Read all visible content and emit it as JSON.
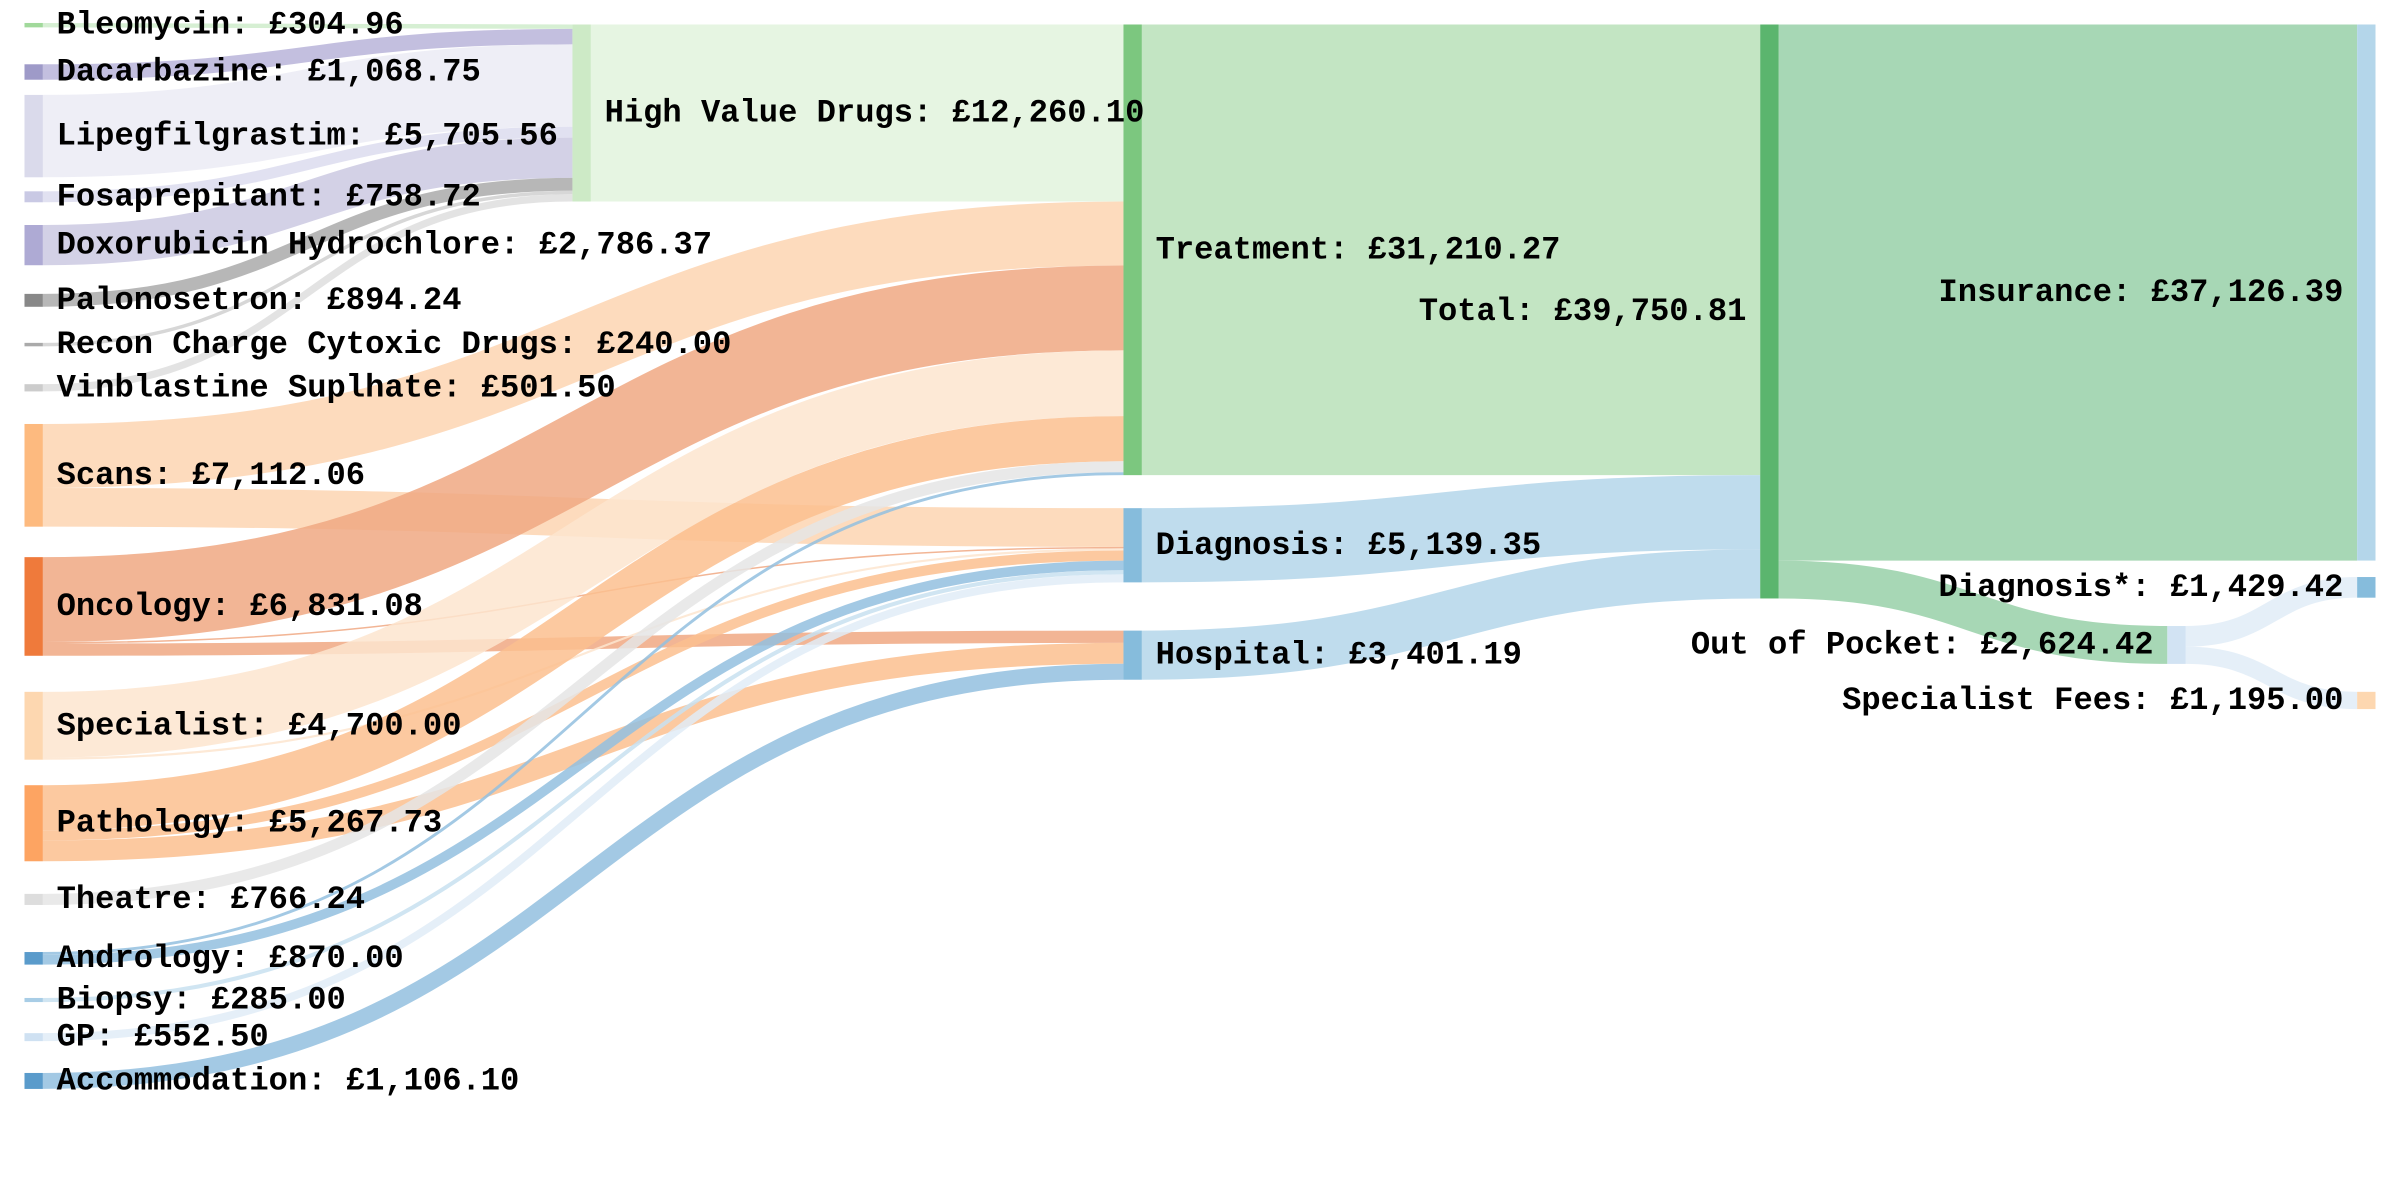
{
  "chart_data": {
    "type": "sankey",
    "currency": "£",
    "nodes": [
      {
        "id": "bleomycin",
        "label": "Bleomycin: £304.96",
        "value": 304.96,
        "color": "#a1d99b",
        "link_color": "#cfeccb"
      },
      {
        "id": "dacarbazine",
        "label": "Dacarbazine: £1,068.75",
        "value": 1068.75,
        "color": "#9e9ac8",
        "link_color": "#b8b4d9"
      },
      {
        "id": "lipegfilgrastim",
        "label": "Lipegfilgrastim: £5,705.56",
        "value": 5705.56,
        "color": "#dadaeb",
        "link_color": "#ebebf4"
      },
      {
        "id": "fosaprepitant",
        "label": "Fosaprepitant: £758.72",
        "value": 758.72,
        "color": "#c9c9e4",
        "link_color": "#dcdcee"
      },
      {
        "id": "doxorubicin",
        "label": "Doxorubicin Hydrochlore: £2,786.37",
        "value": 2786.37,
        "color": "#aeaad4",
        "link_color": "#cbc9e2"
      },
      {
        "id": "palonosetron",
        "label": "Palonosetron: £894.24",
        "value": 894.24,
        "color": "#888888",
        "link_color": "#aaaaaa"
      },
      {
        "id": "recon",
        "label": "Recon Charge Cytoxic Drugs: £240.00",
        "value": 240.0,
        "color": "#aaaaaa",
        "link_color": "#d0d0d0"
      },
      {
        "id": "vinblastine",
        "label": "Vinblastine Suplhate: £501.50",
        "value": 501.5,
        "color": "#cccccc",
        "link_color": "#dedede"
      },
      {
        "id": "scans",
        "label": "Scans: £7,112.06",
        "value": 7112.06,
        "color": "#fdba7f",
        "link_color": "#fdd5b2"
      },
      {
        "id": "oncology",
        "label": "Oncology: £6,831.08",
        "value": 6831.08,
        "color": "#ef7a3b",
        "link_color": "#f0a882"
      },
      {
        "id": "specialist",
        "label": "Specialist: £4,700.00",
        "value": 4700.0,
        "color": "#fdd7b0",
        "link_color": "#fde5cf"
      },
      {
        "id": "pathology",
        "label": "Pathology: £5,267.73",
        "value": 5267.73,
        "color": "#fda462",
        "link_color": "#fcc08f"
      },
      {
        "id": "theatre",
        "label": "Theatre: £766.24",
        "value": 766.24,
        "color": "#dddddd",
        "link_color": "#e5e5e5"
      },
      {
        "id": "andrology",
        "label": "Andrology: £870.00",
        "value": 870.0,
        "color": "#5a9bcb",
        "link_color": "#93bfdf"
      },
      {
        "id": "biopsy",
        "label": "Biopsy: £285.00",
        "value": 285.0,
        "color": "#a8cde6",
        "link_color": "#c8e0f0"
      },
      {
        "id": "gp",
        "label": "GP: £552.50",
        "value": 552.5,
        "color": "#cfe1f2",
        "link_color": "#e0ecf7"
      },
      {
        "id": "accommodation",
        "label": "Accommodation: £1,106.10",
        "value": 1106.1,
        "color": "#5a9bcb",
        "link_color": "#93bfdf"
      },
      {
        "id": "high_value_drugs",
        "label": "High Value Drugs: £12,260.10",
        "value": 12260.1,
        "color": "#cdeac6",
        "link_color": "#e2f3dd"
      },
      {
        "id": "treatment",
        "label": "Treatment: £31,210.27",
        "value": 31210.27,
        "color": "#7cc77f",
        "link_color": "#b9e1b9"
      },
      {
        "id": "diagnosis",
        "label": "Diagnosis: £5,139.35",
        "value": 5139.35,
        "color": "#86bcdc",
        "link_color": "#b4d6ea"
      },
      {
        "id": "hospital",
        "label": "Hospital: £3,401.19",
        "value": 3401.19,
        "color": "#86bcdc",
        "link_color": "#b4d6ea"
      },
      {
        "id": "total",
        "label": "Total: £39,750.81",
        "value": 39750.81,
        "color": "#5bb56e",
        "link_color": "#98d0a8"
      },
      {
        "id": "insurance",
        "label": "Insurance: £37,126.39",
        "value": 37126.39,
        "color": "#b4d6ea",
        "link_color": "#b4d6ea"
      },
      {
        "id": "out_of_pocket",
        "label": "Out of Pocket: £2,624.42",
        "value": 2624.42,
        "color": "#d2e3f3",
        "link_color": "#e1ecf7"
      },
      {
        "id": "diagnosis_star",
        "label": "Diagnosis*: £1,429.42",
        "value": 1429.42,
        "color": "#86bcdc",
        "link_color": "#b4d6ea"
      },
      {
        "id": "specialist_fees",
        "label": "Specialist Fees: £1,195.00",
        "value": 1195.0,
        "color": "#fdd7b0",
        "link_color": "#fde5cf"
      }
    ],
    "links": [
      {
        "source": "bleomycin",
        "target": "high_value_drugs",
        "value": 304.96
      },
      {
        "source": "dacarbazine",
        "target": "high_value_drugs",
        "value": 1068.75
      },
      {
        "source": "lipegfilgrastim",
        "target": "high_value_drugs",
        "value": 5705.56
      },
      {
        "source": "fosaprepitant",
        "target": "high_value_drugs",
        "value": 758.72
      },
      {
        "source": "doxorubicin",
        "target": "high_value_drugs",
        "value": 2786.37
      },
      {
        "source": "palonosetron",
        "target": "high_value_drugs",
        "value": 894.24
      },
      {
        "source": "recon",
        "target": "high_value_drugs",
        "value": 240.0
      },
      {
        "source": "vinblastine",
        "target": "high_value_drugs",
        "value": 501.5
      },
      {
        "source": "high_value_drugs",
        "target": "treatment",
        "value": 12260.1
      },
      {
        "source": "scans",
        "target": "treatment",
        "value": 4430.21
      },
      {
        "source": "scans",
        "target": "diagnosis",
        "value": 2681.85
      },
      {
        "source": "oncology",
        "target": "treatment",
        "value": 5881.08
      },
      {
        "source": "oncology",
        "target": "diagnosis",
        "value": 100.0
      },
      {
        "source": "oncology",
        "target": "hospital",
        "value": 850.0
      },
      {
        "source": "specialist",
        "target": "treatment",
        "value": 4550.0
      },
      {
        "source": "specialist",
        "target": "diagnosis",
        "value": 150.0
      },
      {
        "source": "pathology",
        "target": "treatment",
        "value": 3122.64
      },
      {
        "source": "pathology",
        "target": "diagnosis",
        "value": 700.0
      },
      {
        "source": "pathology",
        "target": "hospital",
        "value": 1445.09
      },
      {
        "source": "theatre",
        "target": "treatment",
        "value": 766.24
      },
      {
        "source": "andrology",
        "target": "treatment",
        "value": 200.0
      },
      {
        "source": "andrology",
        "target": "diagnosis",
        "value": 670.0
      },
      {
        "source": "biopsy",
        "target": "diagnosis",
        "value": 285.0
      },
      {
        "source": "gp",
        "target": "diagnosis",
        "value": 552.5
      },
      {
        "source": "accommodation",
        "target": "hospital",
        "value": 1106.1
      },
      {
        "source": "treatment",
        "target": "total",
        "value": 31210.27
      },
      {
        "source": "diagnosis",
        "target": "total",
        "value": 5139.35
      },
      {
        "source": "hospital",
        "target": "total",
        "value": 3401.19
      },
      {
        "source": "total",
        "target": "insurance",
        "value": 37126.39
      },
      {
        "source": "total",
        "target": "out_of_pocket",
        "value": 2624.42
      },
      {
        "source": "out_of_pocket",
        "target": "diagnosis_star",
        "value": 1429.42
      },
      {
        "source": "out_of_pocket",
        "target": "specialist_fees",
        "value": 1195.0
      }
    ]
  }
}
